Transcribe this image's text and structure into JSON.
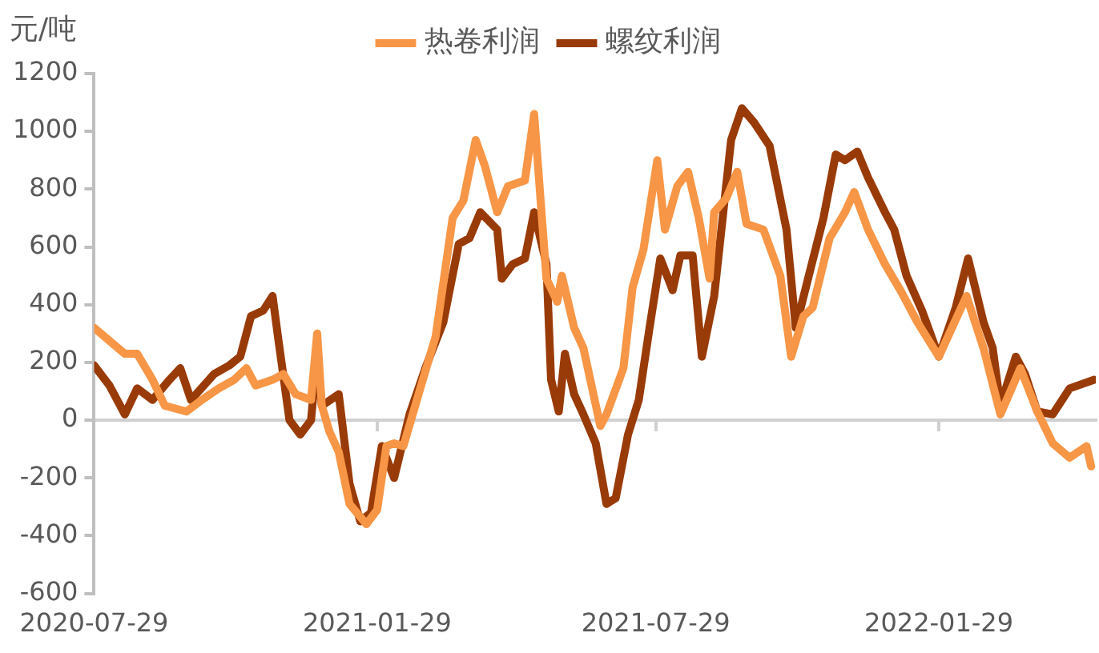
{
  "chart_data": {
    "type": "line",
    "ylabel": "元/吨",
    "legend": "top",
    "xlim": [
      "2020-07-29",
      "2022-05-11"
    ],
    "xticks": [
      "2020-07-29",
      "2021-01-29",
      "2021-07-29",
      "2022-01-29"
    ],
    "ylim": [
      -600,
      1200
    ],
    "yticks": [
      -600,
      -400,
      -200,
      0,
      200,
      400,
      600,
      800,
      1000,
      1200
    ],
    "series": [
      {
        "name": "热卷利润",
        "color": "#f79646",
        "x": [
          "2020-07-29",
          "2020-08-18",
          "2020-08-26",
          "2020-09-05",
          "2020-09-13",
          "2020-09-27",
          "2020-10-07",
          "2020-10-18",
          "2020-10-28",
          "2020-11-05",
          "2020-11-11",
          "2020-11-22",
          "2020-11-29",
          "2020-12-07",
          "2020-12-17",
          "2020-12-21",
          "2020-12-24",
          "2020-12-29",
          "2021-01-04",
          "2021-01-11",
          "2021-01-22",
          "2021-01-29",
          "2021-02-04",
          "2021-02-09",
          "2021-02-15",
          "2021-02-26",
          "2021-03-08",
          "2021-03-19",
          "2021-03-26",
          "2021-04-03",
          "2021-04-09",
          "2021-04-17",
          "2021-04-24",
          "2021-05-05",
          "2021-05-11",
          "2021-05-19",
          "2021-05-26",
          "2021-05-29",
          "2021-06-06",
          "2021-06-12",
          "2021-06-23",
          "2021-06-27",
          "2021-07-08",
          "2021-07-14",
          "2021-07-21",
          "2021-07-30",
          "2021-08-04",
          "2021-08-12",
          "2021-08-19",
          "2021-08-26",
          "2021-09-02",
          "2021-09-05",
          "2021-09-13",
          "2021-09-20",
          "2021-09-26",
          "2021-10-07",
          "2021-10-18",
          "2021-10-25",
          "2021-11-02",
          "2021-11-08",
          "2021-11-19",
          "2021-11-29",
          "2021-12-05",
          "2021-12-14",
          "2021-12-25",
          "2022-01-04",
          "2022-01-15",
          "2022-01-29",
          "2022-02-16",
          "2022-02-27",
          "2022-03-10",
          "2022-03-23",
          "2022-04-03",
          "2022-04-13",
          "2022-04-24",
          "2022-05-05",
          "2022-05-08"
        ],
        "values": [
          320,
          230,
          230,
          140,
          50,
          30,
          70,
          110,
          140,
          180,
          120,
          140,
          160,
          90,
          70,
          300,
          50,
          -40,
          -110,
          -290,
          -360,
          -310,
          -90,
          -80,
          -90,
          110,
          290,
          700,
          760,
          970,
          880,
          720,
          810,
          830,
          1060,
          490,
          410,
          500,
          320,
          250,
          -20,
          20,
          180,
          460,
          590,
          900,
          660,
          810,
          860,
          700,
          490,
          720,
          770,
          860,
          680,
          660,
          500,
          220,
          360,
          390,
          630,
          720,
          790,
          660,
          540,
          450,
          340,
          220,
          430,
          250,
          20,
          180,
          30,
          -80,
          -130,
          -90,
          -160
        ]
      },
      {
        "name": "螺纹利润",
        "color": "#993b08",
        "x": [
          "2020-07-29",
          "2020-08-08",
          "2020-08-18",
          "2020-08-26",
          "2020-09-05",
          "2020-09-16",
          "2020-09-23",
          "2020-09-30",
          "2020-10-15",
          "2020-10-25",
          "2020-11-01",
          "2020-11-08",
          "2020-11-16",
          "2020-11-22",
          "2020-11-26",
          "2020-12-03",
          "2020-12-10",
          "2020-12-17",
          "2020-12-21",
          "2020-12-24",
          "2021-01-04",
          "2021-01-11",
          "2021-01-18",
          "2021-01-25",
          "2021-02-01",
          "2021-02-09",
          "2021-02-19",
          "2021-03-02",
          "2021-03-13",
          "2021-03-23",
          "2021-03-30",
          "2021-04-06",
          "2021-04-17",
          "2021-04-20",
          "2021-04-27",
          "2021-05-05",
          "2021-05-11",
          "2021-05-19",
          "2021-05-22",
          "2021-05-27",
          "2021-05-31",
          "2021-06-06",
          "2021-06-12",
          "2021-06-20",
          "2021-06-27",
          "2021-07-03",
          "2021-07-11",
          "2021-07-18",
          "2021-07-25",
          "2021-08-01",
          "2021-08-09",
          "2021-08-14",
          "2021-08-22",
          "2021-08-28",
          "2021-09-05",
          "2021-09-16",
          "2021-09-23",
          "2021-10-01",
          "2021-10-11",
          "2021-10-22",
          "2021-10-28",
          "2021-11-05",
          "2021-11-15",
          "2021-11-23",
          "2021-11-29",
          "2021-12-07",
          "2021-12-14",
          "2021-12-25",
          "2021-12-31",
          "2022-01-08",
          "2022-01-18",
          "2022-01-29",
          "2022-02-09",
          "2022-02-17",
          "2022-02-27",
          "2022-03-05",
          "2022-03-10",
          "2022-03-20",
          "2022-03-26",
          "2022-04-03",
          "2022-04-13",
          "2022-04-24",
          "2022-05-10"
        ],
        "values": [
          190,
          120,
          20,
          110,
          70,
          140,
          180,
          70,
          160,
          190,
          220,
          360,
          380,
          430,
          270,
          0,
          -50,
          0,
          230,
          50,
          90,
          -220,
          -350,
          -320,
          -90,
          -200,
          20,
          190,
          340,
          610,
          630,
          720,
          660,
          490,
          540,
          560,
          720,
          540,
          140,
          30,
          230,
          90,
          20,
          -80,
          -290,
          -270,
          -50,
          70,
          320,
          560,
          450,
          570,
          570,
          220,
          430,
          970,
          1080,
          1030,
          950,
          660,
          320,
          490,
          700,
          920,
          900,
          930,
          840,
          720,
          660,
          500,
          380,
          220,
          390,
          560,
          340,
          250,
          50,
          220,
          160,
          30,
          20,
          110,
          140
        ]
      }
    ]
  }
}
